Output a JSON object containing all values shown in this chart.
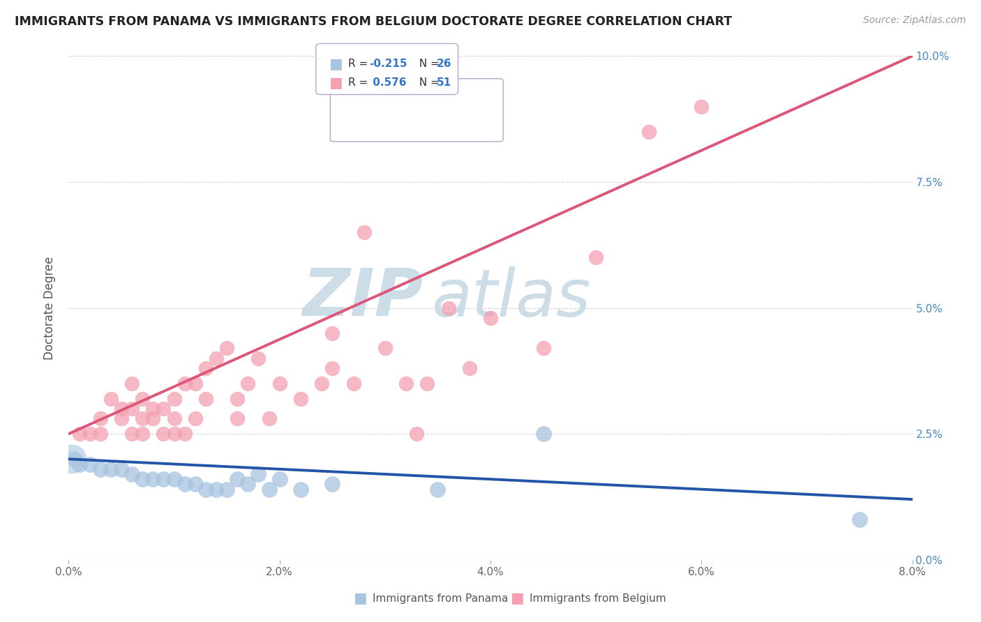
{
  "title": "IMMIGRANTS FROM PANAMA VS IMMIGRANTS FROM BELGIUM DOCTORATE DEGREE CORRELATION CHART",
  "source": "Source: ZipAtlas.com",
  "ylabel": "Doctorate Degree",
  "legend_blue_label": "Immigrants from Panama",
  "legend_pink_label": "Immigrants from Belgium",
  "blue_color": "#a8c4e0",
  "pink_color": "#f4a0b0",
  "blue_line_color": "#2255aa",
  "pink_line_color": "#dd5577",
  "watermark_zip": "ZIP",
  "watermark_atlas": "atlas",
  "watermark_color": "#ccdde8",
  "blue_x": [
    0.0005,
    0.001,
    0.002,
    0.003,
    0.004,
    0.005,
    0.006,
    0.007,
    0.008,
    0.009,
    0.01,
    0.011,
    0.012,
    0.013,
    0.014,
    0.015,
    0.016,
    0.017,
    0.018,
    0.019,
    0.02,
    0.022,
    0.025,
    0.035,
    0.045,
    0.075
  ],
  "blue_y": [
    0.02,
    0.019,
    0.019,
    0.018,
    0.018,
    0.018,
    0.017,
    0.016,
    0.016,
    0.016,
    0.016,
    0.015,
    0.015,
    0.014,
    0.014,
    0.014,
    0.016,
    0.015,
    0.017,
    0.014,
    0.016,
    0.014,
    0.015,
    0.014,
    0.025,
    0.008
  ],
  "pink_x": [
    0.001,
    0.002,
    0.003,
    0.003,
    0.004,
    0.005,
    0.005,
    0.006,
    0.006,
    0.006,
    0.007,
    0.007,
    0.007,
    0.008,
    0.008,
    0.009,
    0.009,
    0.01,
    0.01,
    0.01,
    0.011,
    0.011,
    0.012,
    0.012,
    0.013,
    0.013,
    0.014,
    0.015,
    0.016,
    0.016,
    0.017,
    0.018,
    0.019,
    0.02,
    0.022,
    0.024,
    0.025,
    0.025,
    0.027,
    0.028,
    0.03,
    0.032,
    0.033,
    0.034,
    0.036,
    0.038,
    0.04,
    0.045,
    0.05,
    0.055,
    0.06
  ],
  "pink_y": [
    0.025,
    0.025,
    0.028,
    0.025,
    0.032,
    0.03,
    0.028,
    0.035,
    0.03,
    0.025,
    0.028,
    0.032,
    0.025,
    0.03,
    0.028,
    0.025,
    0.03,
    0.028,
    0.032,
    0.025,
    0.025,
    0.035,
    0.035,
    0.028,
    0.038,
    0.032,
    0.04,
    0.042,
    0.032,
    0.028,
    0.035,
    0.04,
    0.028,
    0.035,
    0.032,
    0.035,
    0.045,
    0.038,
    0.035,
    0.065,
    0.042,
    0.035,
    0.025,
    0.035,
    0.05,
    0.038,
    0.048,
    0.042,
    0.06,
    0.085,
    0.09
  ],
  "blue_line_x0": 0.0,
  "blue_line_y0": 0.02,
  "blue_line_x1": 0.08,
  "blue_line_y1": 0.012,
  "pink_line_x0": 0.0,
  "pink_line_y0": 0.025,
  "pink_line_x1": 0.08,
  "pink_line_y1": 0.1,
  "xmin": 0.0,
  "xmax": 0.08,
  "ymin": 0.0,
  "ymax": 0.1
}
